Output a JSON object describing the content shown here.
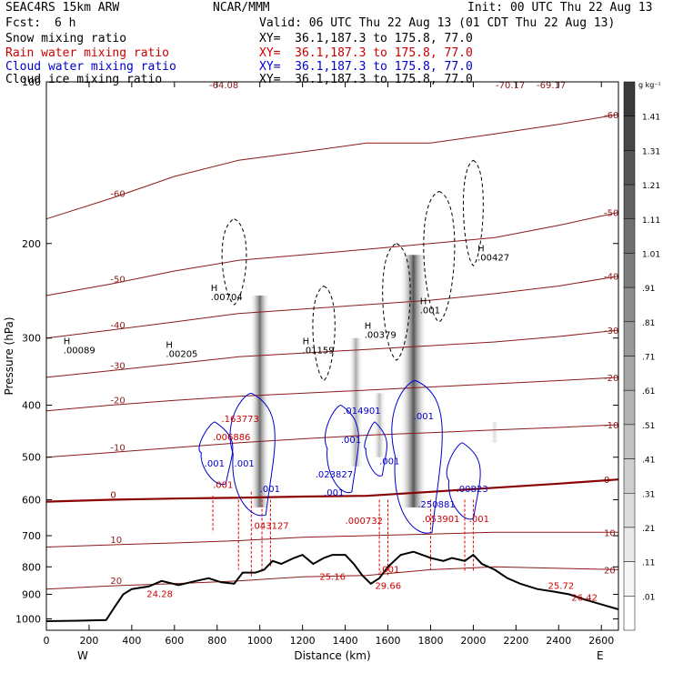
{
  "header": {
    "model": "SEAC4RS 15km ARW",
    "org": "NCAR/MMM",
    "init": "Init: 00 UTC Thu 22 Aug 13",
    "fcst_label": "Fcst:",
    "fcst_value": "6 h",
    "valid": "Valid: 06 UTC Thu 22 Aug 13 (01 CDT Thu 22 Aug 13)",
    "fields": [
      {
        "name": "Snow mixing ratio",
        "xy": "XY=  36.1,187.3 to 175.8, 77.0",
        "color": "#000000"
      },
      {
        "name": "Rain water mixing ratio",
        "xy": "XY=  36.1,187.3 to 175.8, 77.0",
        "color": "#cc0000"
      },
      {
        "name": "Cloud water mixing ratio",
        "xy": "XY=  36.1,187.3 to 175.8, 77.0",
        "color": "#0000cc"
      },
      {
        "name": "Cloud ice mixing ratio",
        "xy": "XY=  36.1,187.3 to 175.8, 77.0",
        "color": "#000000"
      }
    ]
  },
  "chart_data": {
    "type": "cross-section",
    "xlabel": "Distance (km)",
    "ylabel": "Pressure (hPa)",
    "xlim": [
      0,
      2680
    ],
    "ylim": [
      1050,
      100
    ],
    "x_ticks": [
      0,
      200,
      400,
      600,
      800,
      1000,
      1200,
      1400,
      1600,
      1800,
      2000,
      2200,
      2400,
      2600
    ],
    "y_ticks": [
      100,
      200,
      300,
      400,
      500,
      600,
      700,
      800,
      900,
      1000
    ],
    "west_label": "W",
    "east_label": "E",
    "colorbar": {
      "unit": "g kg⁻¹",
      "labels": [
        "1.41",
        "1.31",
        "1.21",
        "1.11",
        "1.01",
        ".91",
        ".81",
        ".71",
        ".61",
        ".51",
        ".41",
        ".31",
        ".21",
        ".11",
        ".01"
      ],
      "colors": [
        "#3a3a3a",
        "#474747",
        "#555555",
        "#626262",
        "#707070",
        "#7d7d7d",
        "#8b8b8b",
        "#989898",
        "#a6a6a6",
        "#b3b3b3",
        "#c1c1c1",
        "#cecece",
        "#dcdcdc",
        "#e9e9e9",
        "#f6f6f6",
        "#ffffff"
      ]
    },
    "temperature_contours": [
      {
        "label": "-60",
        "points": [
          [
            0,
            180
          ],
          [
            300,
            165
          ],
          [
            600,
            150
          ],
          [
            900,
            140
          ],
          [
            1200,
            135
          ],
          [
            1500,
            130
          ],
          [
            1800,
            130
          ],
          [
            2100,
            125
          ],
          [
            2400,
            120
          ],
          [
            2680,
            115
          ]
        ]
      },
      {
        "label": "-50",
        "points": [
          [
            0,
            250
          ],
          [
            300,
            238
          ],
          [
            600,
            225
          ],
          [
            900,
            215
          ],
          [
            1200,
            210
          ],
          [
            1500,
            205
          ],
          [
            1800,
            200
          ],
          [
            2100,
            195
          ],
          [
            2400,
            185
          ],
          [
            2680,
            175
          ]
        ]
      },
      {
        "label": "-40",
        "points": [
          [
            0,
            300
          ],
          [
            300,
            290
          ],
          [
            600,
            280
          ],
          [
            900,
            270
          ],
          [
            1200,
            265
          ],
          [
            1500,
            260
          ],
          [
            1800,
            255
          ],
          [
            2100,
            248
          ],
          [
            2400,
            240
          ],
          [
            2680,
            230
          ]
        ]
      },
      {
        "label": "-30",
        "points": [
          [
            0,
            355
          ],
          [
            300,
            345
          ],
          [
            600,
            335
          ],
          [
            900,
            325
          ],
          [
            1200,
            320
          ],
          [
            1500,
            315
          ],
          [
            1800,
            310
          ],
          [
            2100,
            305
          ],
          [
            2400,
            298
          ],
          [
            2680,
            290
          ]
        ]
      },
      {
        "label": "-20",
        "points": [
          [
            0,
            410
          ],
          [
            300,
            400
          ],
          [
            600,
            392
          ],
          [
            900,
            385
          ],
          [
            1200,
            380
          ],
          [
            1500,
            375
          ],
          [
            1800,
            370
          ],
          [
            2100,
            365
          ],
          [
            2400,
            360
          ],
          [
            2680,
            355
          ]
        ]
      },
      {
        "label": "-10",
        "points": [
          [
            0,
            500
          ],
          [
            300,
            490
          ],
          [
            600,
            480
          ],
          [
            900,
            470
          ],
          [
            1200,
            462
          ],
          [
            1500,
            455
          ],
          [
            1800,
            450
          ],
          [
            2100,
            445
          ],
          [
            2400,
            440
          ],
          [
            2680,
            435
          ]
        ]
      },
      {
        "label": "0",
        "points": [
          [
            0,
            605
          ],
          [
            300,
            600
          ],
          [
            600,
            597
          ],
          [
            900,
            595
          ],
          [
            1200,
            592
          ],
          [
            1500,
            590
          ],
          [
            1800,
            580
          ],
          [
            2100,
            570
          ],
          [
            2400,
            560
          ],
          [
            2680,
            550
          ]
        ]
      },
      {
        "label": "10",
        "points": [
          [
            0,
            735
          ],
          [
            300,
            728
          ],
          [
            600,
            722
          ],
          [
            900,
            715
          ],
          [
            1200,
            705
          ],
          [
            1500,
            700
          ],
          [
            1800,
            695
          ],
          [
            2100,
            690
          ],
          [
            2400,
            690
          ],
          [
            2680,
            690
          ]
        ]
      },
      {
        "label": "20",
        "points": [
          [
            0,
            880
          ],
          [
            300,
            868
          ],
          [
            600,
            860
          ],
          [
            900,
            850
          ],
          [
            1200,
            835
          ],
          [
            1500,
            830
          ],
          [
            1800,
            810
          ],
          [
            2100,
            800
          ],
          [
            2400,
            805
          ],
          [
            2680,
            810
          ]
        ]
      }
    ],
    "rain_labels": [
      {
        "text": ".163773",
        "x": 820,
        "p": 430
      },
      {
        "text": ".006886",
        "x": 780,
        "p": 465
      },
      {
        "text": ".001",
        "x": 780,
        "p": 570
      },
      {
        "text": ".043127",
        "x": 960,
        "p": 680
      },
      {
        "text": ".000732",
        "x": 1400,
        "p": 665
      },
      {
        "text": ".053901",
        "x": 1760,
        "p": 660
      },
      {
        "text": ".001",
        "x": 1980,
        "p": 660
      },
      {
        "text": ".001",
        "x": 1560,
        "p": 820
      },
      {
        "text": "29.66",
        "x": 1540,
        "p": 880
      },
      {
        "text": "25.72",
        "x": 2350,
        "p": 880
      },
      {
        "text": "26.42",
        "x": 2460,
        "p": 925
      },
      {
        "text": "25.16",
        "x": 1280,
        "p": 845
      },
      {
        "text": "24.28",
        "x": 470,
        "p": 910
      }
    ],
    "cloud_labels": [
      {
        "text": ".001",
        "x": 740,
        "p": 520
      },
      {
        "text": ".001",
        "x": 880,
        "p": 520
      },
      {
        "text": ".001",
        "x": 1000,
        "p": 580
      },
      {
        "text": ".023827",
        "x": 1260,
        "p": 545
      },
      {
        "text": ".001",
        "x": 1300,
        "p": 590
      },
      {
        "text": ".014901",
        "x": 1390,
        "p": 415
      },
      {
        "text": ".001",
        "x": 1380,
        "p": 470
      },
      {
        "text": ".001",
        "x": 1560,
        "p": 515
      },
      {
        "text": ".001",
        "x": 1720,
        "p": 425
      },
      {
        "text": ".250881",
        "x": 1740,
        "p": 620
      },
      {
        "text": ".00823",
        "x": 1920,
        "p": 580
      }
    ],
    "ice_labels": [
      {
        "text": ".00704",
        "x": 770,
        "p": 255
      },
      {
        "text": ".00089",
        "x": 80,
        "p": 320
      },
      {
        "text": ".00205",
        "x": 560,
        "p": 325
      },
      {
        "text": ".01159",
        "x": 1200,
        "p": 320
      },
      {
        "text": ".00379",
        "x": 1490,
        "p": 300
      },
      {
        "text": ".001",
        "x": 1750,
        "p": 270
      },
      {
        "text": ".00427",
        "x": 2020,
        "p": 215
      }
    ],
    "top_labels": [
      "-64.08",
      "-70.17",
      "-69.17"
    ],
    "terrain": [
      [
        0,
        1010
      ],
      [
        150,
        1008
      ],
      [
        280,
        1005
      ],
      [
        320,
        950
      ],
      [
        360,
        900
      ],
      [
        400,
        880
      ],
      [
        480,
        870
      ],
      [
        540,
        850
      ],
      [
        620,
        865
      ],
      [
        700,
        850
      ],
      [
        760,
        840
      ],
      [
        820,
        855
      ],
      [
        880,
        860
      ],
      [
        920,
        820
      ],
      [
        980,
        820
      ],
      [
        1020,
        810
      ],
      [
        1060,
        780
      ],
      [
        1100,
        790
      ],
      [
        1160,
        770
      ],
      [
        1200,
        760
      ],
      [
        1250,
        790
      ],
      [
        1300,
        770
      ],
      [
        1340,
        760
      ],
      [
        1400,
        760
      ],
      [
        1440,
        790
      ],
      [
        1480,
        830
      ],
      [
        1520,
        860
      ],
      [
        1560,
        840
      ],
      [
        1600,
        800
      ],
      [
        1660,
        760
      ],
      [
        1720,
        750
      ],
      [
        1760,
        760
      ],
      [
        1800,
        770
      ],
      [
        1860,
        780
      ],
      [
        1900,
        770
      ],
      [
        1960,
        780
      ],
      [
        2000,
        760
      ],
      [
        2040,
        790
      ],
      [
        2100,
        810
      ],
      [
        2160,
        840
      ],
      [
        2220,
        860
      ],
      [
        2300,
        880
      ],
      [
        2380,
        890
      ],
      [
        2450,
        900
      ],
      [
        2520,
        920
      ],
      [
        2600,
        940
      ],
      [
        2680,
        960
      ]
    ]
  }
}
